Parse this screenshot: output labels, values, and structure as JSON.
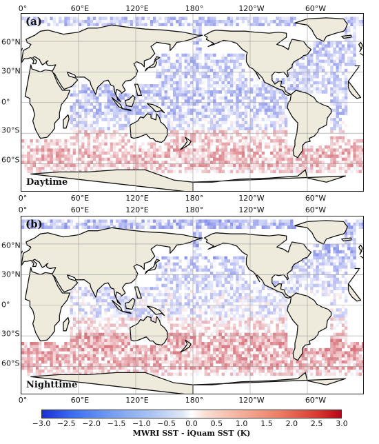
{
  "lon_labels": [
    "0°",
    "60°E",
    "120°E",
    "180°",
    "120°W",
    "60°W"
  ],
  "lat_labels": [
    "60°N",
    "30°N",
    "0°",
    "30°S",
    "60°S"
  ],
  "panels": [
    {
      "tag": "(a)",
      "name": "Daytime"
    },
    {
      "tag": "(b)",
      "name": "Nighttime"
    }
  ],
  "colorbar": {
    "ticks": [
      "−3.0",
      "−2.5",
      "−2.0",
      "−1.5",
      "−1.0",
      "−0.5",
      "0.0",
      "0.5",
      "1.0",
      "1.5",
      "2.0",
      "2.5",
      "3.0"
    ],
    "label": "MWRI SST - iQuam SST (K)",
    "low_color": "#1c2fd6",
    "mid_color": "#ffffff",
    "high_color": "#b80617"
  },
  "colors": {
    "land": "#efebdc",
    "coast": "#111111",
    "grid": "#9a9a9a"
  }
}
